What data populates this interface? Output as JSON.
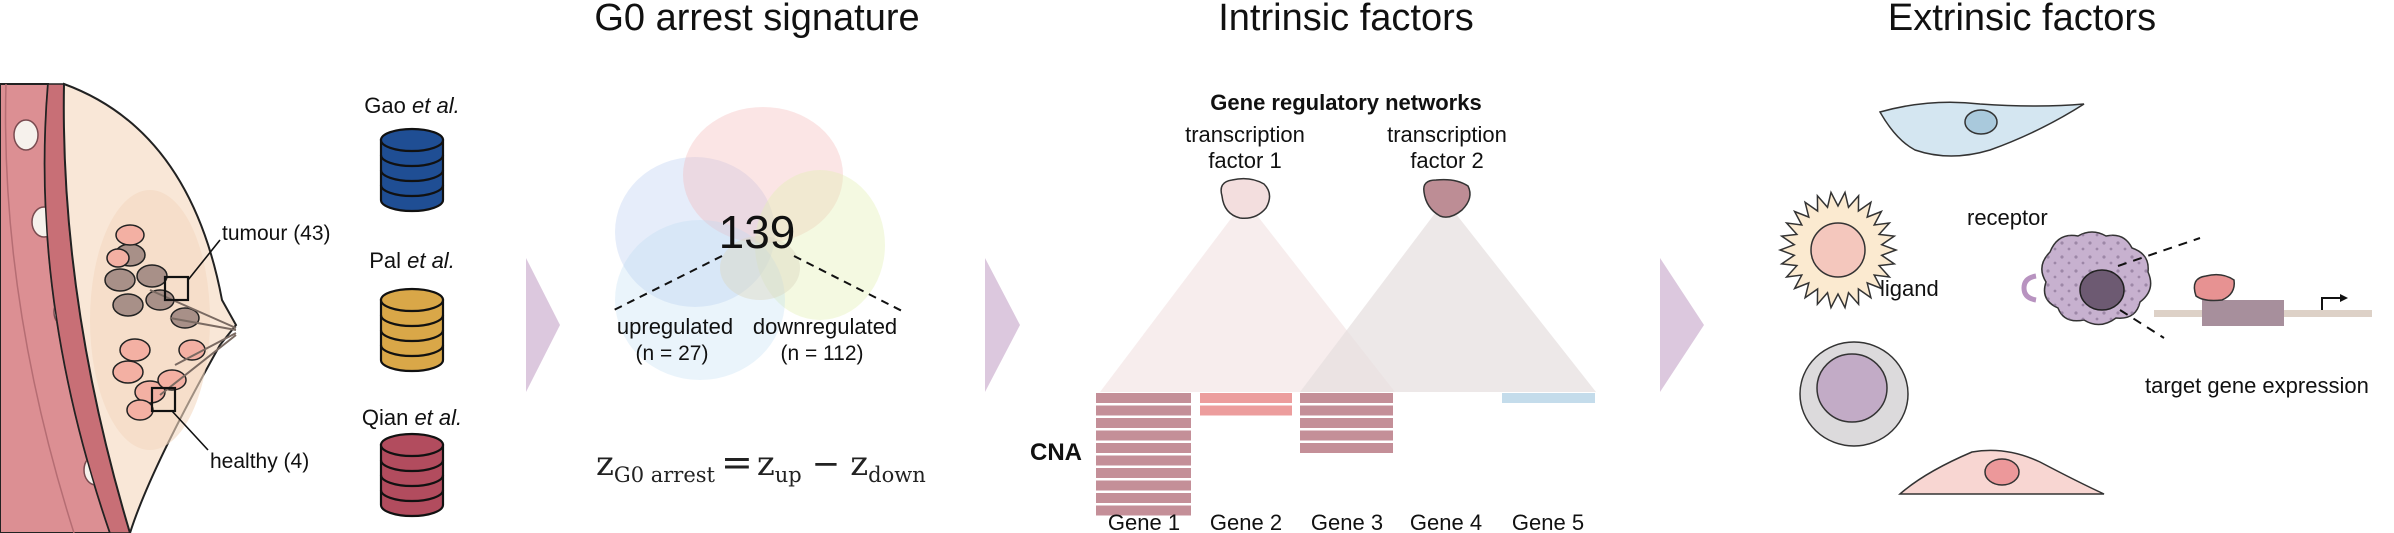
{
  "panel1": {
    "datasets": [
      {
        "prefix": "Gao ",
        "suffix": "et al.",
        "color": "#1f4e94"
      },
      {
        "prefix": "Pal ",
        "suffix": "et al.",
        "color": "#d9a748"
      },
      {
        "prefix": "Qian ",
        "suffix": "et al.",
        "color": "#b24c5e"
      }
    ],
    "tumour_label": "tumour (43)",
    "healthy_label": "healthy (4)"
  },
  "panel2": {
    "title": "G0 arrest signature",
    "total": "139",
    "upregulated": "upregulated",
    "upregulated_n": "(n = 27)",
    "downregulated": "downregulated",
    "downregulated_n": "(n = 112)",
    "formula": {
      "z": "z",
      "g0_sub": "G0 arrest",
      "equals": "=",
      "up_sub": "up",
      "minus": "−",
      "down_sub": "down"
    }
  },
  "panel3": {
    "title": "Intrinsic factors",
    "subtitle": "Gene regulatory networks",
    "tf1_line1": "transcription",
    "tf1_line2": "factor 1",
    "tf2_line1": "transcription",
    "tf2_line2": "factor 2",
    "cna_label": "CNA",
    "genes": [
      "Gene 1",
      "Gene 2",
      "Gene 3",
      "Gene 4",
      "Gene 5"
    ]
  },
  "panel4": {
    "title": "Extrinsic factors",
    "receptor": "receptor",
    "ligand": "ligand",
    "target": "target gene expression"
  }
}
